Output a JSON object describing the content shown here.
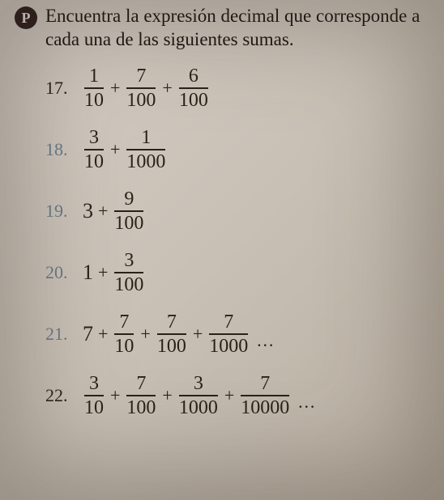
{
  "badge": "P",
  "instruction": "Encuentra la expresión decimal que corresponde a cada una de las siguientes sumas.",
  "colors": {
    "background_gradient": [
      "#d4cdc4",
      "#c8c0b5",
      "#b8aea0"
    ],
    "text": "#1a1410",
    "badge_bg": "#2a1a1a",
    "badge_fg": "#e8e0d5",
    "faded_number": "#6a7a8a",
    "rule": "#2a2218"
  },
  "typography": {
    "instruction_fontsize": 23,
    "problem_fontsize": 24,
    "number_fontsize": 22,
    "font_family": "Georgia, Times New Roman, serif"
  },
  "problems": [
    {
      "number": "17.",
      "faded": false,
      "terms": [
        {
          "type": "frac",
          "num": "1",
          "den": "10"
        },
        {
          "type": "op",
          "val": "+"
        },
        {
          "type": "frac",
          "num": "7",
          "den": "100"
        },
        {
          "type": "op",
          "val": "+"
        },
        {
          "type": "frac",
          "num": "6",
          "den": "100"
        }
      ]
    },
    {
      "number": "18.",
      "faded": true,
      "terms": [
        {
          "type": "frac",
          "num": "3",
          "den": "10"
        },
        {
          "type": "op",
          "val": "+"
        },
        {
          "type": "frac",
          "num": "1",
          "den": "1000"
        }
      ]
    },
    {
      "number": "19.",
      "faded": true,
      "terms": [
        {
          "type": "whole",
          "val": "3"
        },
        {
          "type": "op",
          "val": "+"
        },
        {
          "type": "frac",
          "num": "9",
          "den": "100"
        }
      ]
    },
    {
      "number": "20.",
      "faded": true,
      "terms": [
        {
          "type": "whole",
          "val": "1"
        },
        {
          "type": "op",
          "val": "+"
        },
        {
          "type": "frac",
          "num": "3",
          "den": "100"
        }
      ]
    },
    {
      "number": "21.",
      "faded": true,
      "terms": [
        {
          "type": "whole",
          "val": "7"
        },
        {
          "type": "op",
          "val": "+"
        },
        {
          "type": "frac",
          "num": "7",
          "den": "10"
        },
        {
          "type": "op",
          "val": "+"
        },
        {
          "type": "frac",
          "num": "7",
          "den": "100"
        },
        {
          "type": "op",
          "val": "+"
        },
        {
          "type": "frac",
          "num": "7",
          "den": "1000"
        },
        {
          "type": "dots",
          "val": "…"
        }
      ]
    },
    {
      "number": "22.",
      "faded": false,
      "terms": [
        {
          "type": "frac",
          "num": "3",
          "den": "10"
        },
        {
          "type": "op",
          "val": "+"
        },
        {
          "type": "frac",
          "num": "7",
          "den": "100"
        },
        {
          "type": "op",
          "val": "+"
        },
        {
          "type": "frac",
          "num": "3",
          "den": "1000"
        },
        {
          "type": "op",
          "val": "+"
        },
        {
          "type": "frac",
          "num": "7",
          "den": "10000"
        },
        {
          "type": "dots",
          "val": "…"
        }
      ]
    }
  ]
}
